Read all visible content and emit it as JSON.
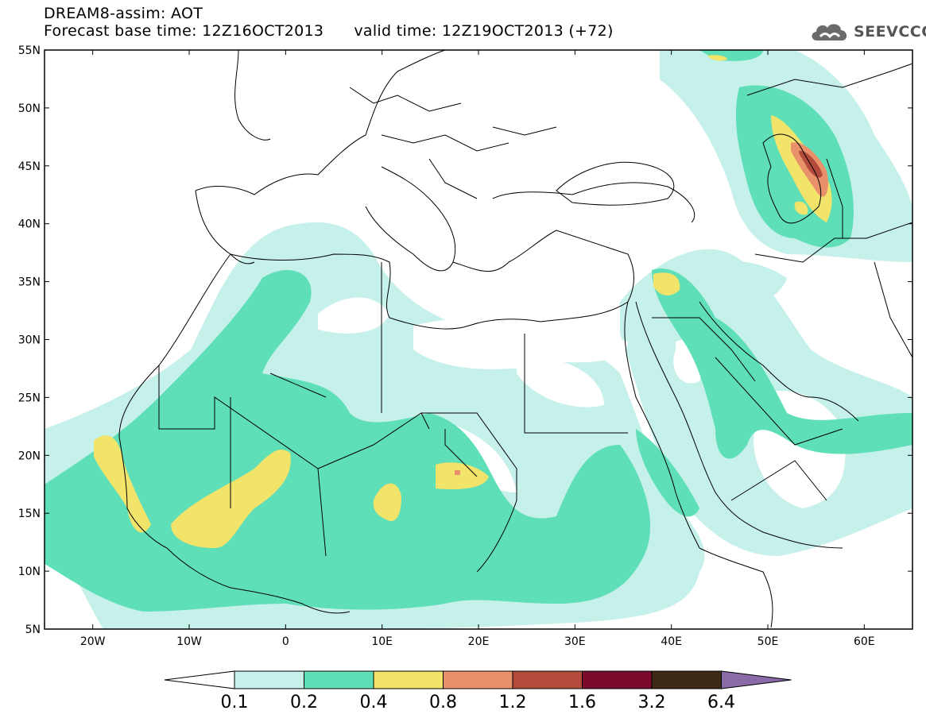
{
  "title": {
    "line1": "DREAM8-assim: AOT",
    "base_prefix": "Forecast base time: ",
    "base_time": "12Z16OCT2013",
    "valid_prefix": "valid time: ",
    "valid_time": "12Z19OCT2013 (+72)"
  },
  "logo": {
    "text": "SEEVCCC",
    "icon": "cloud-icon"
  },
  "map": {
    "projection": "lat-lon",
    "lon_range": [
      -25,
      65
    ],
    "lat_range": [
      5,
      55
    ],
    "lat_ticks": [
      "55N",
      "50N",
      "45N",
      "40N",
      "35N",
      "30N",
      "25N",
      "20N",
      "15N",
      "10N",
      "5N"
    ],
    "lon_ticks": [
      "20W",
      "10W",
      "0",
      "10E",
      "20E",
      "30E",
      "40E",
      "50E",
      "60E"
    ]
  },
  "colorbar": {
    "boundaries": [
      "0.1",
      "0.2",
      "0.4",
      "0.8",
      "1.2",
      "1.6",
      "3.2",
      "6.4"
    ],
    "colors": [
      "#c6f0ea",
      "#5fdfb8",
      "#f2e36b",
      "#e8916a",
      "#b34b3c",
      "#7b0b2b",
      "#3f2a16",
      "#8b6aa8"
    ],
    "under_color": "#ffffff",
    "over_color": "#8b6aa8"
  }
}
